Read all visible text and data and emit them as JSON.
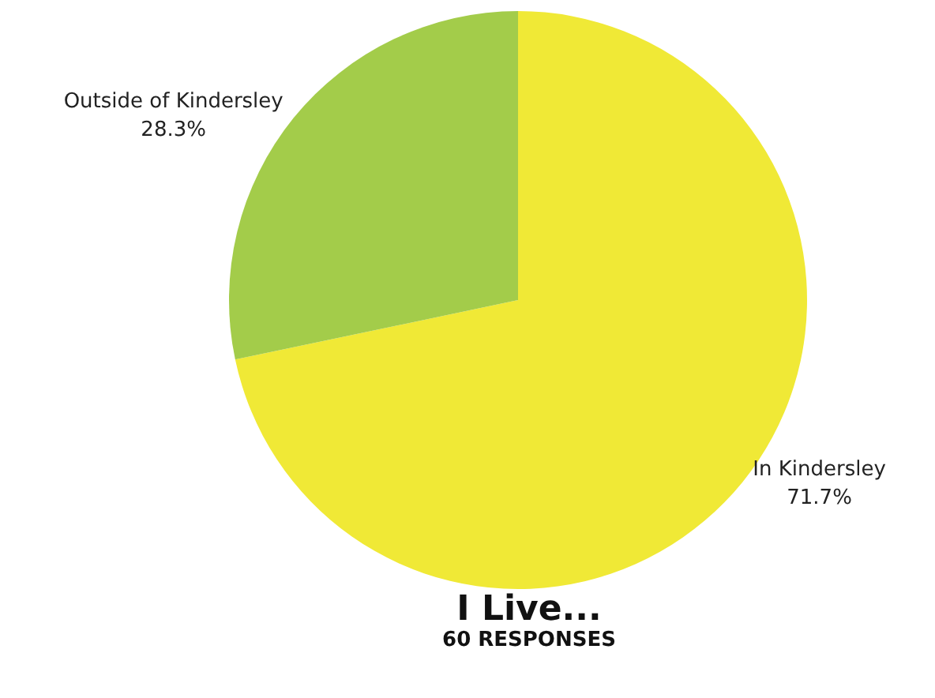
{
  "chart_data": {
    "type": "pie",
    "title": "I Live...",
    "subtitle": "60 RESPONSES",
    "categories": [
      "In Kindersley",
      "Outside of Kindersley"
    ],
    "values": [
      71.7,
      28.3
    ],
    "colors": [
      "#f0e936",
      "#a3cc4a"
    ],
    "value_labels": [
      "71.7%",
      "28.3%"
    ],
    "legend": false
  }
}
